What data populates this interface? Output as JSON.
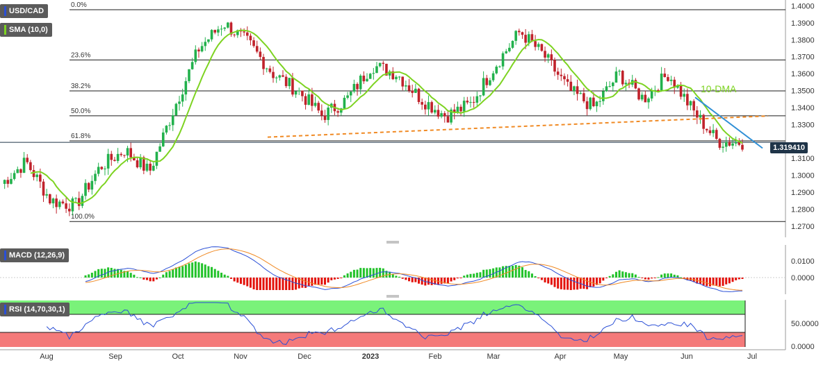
{
  "symbol_badge": "USD/CAD",
  "sma_badge": "SMA (10,0)",
  "macd_badge": "MACD (12,26,9)",
  "rsi_badge": "RSI (14,70,30,1)",
  "annotation_dma": "10-DMA",
  "last_price_label": "1.319410",
  "colors": {
    "up_candle": "#22b14c",
    "down_candle": "#c0222b",
    "sma_line": "#7dd321",
    "fib_line": "#1a1a1a",
    "support_dashed": "#f08a24",
    "down_trendline": "#2f8fd6",
    "macd_line": "#2a4fd6",
    "signal_line": "#f08a24",
    "hist_pos": "#22c22a",
    "hist_neg": "#e3120b",
    "rsi_line": "#2a4fd6",
    "rsi_overbought_zone": "#7af27a",
    "rsi_oversold_zone": "#f47a7a",
    "price_tag_bg": "#1f3448"
  },
  "chart_data": [
    {
      "type": "candlestick",
      "title": "USD/CAD",
      "x_ticks": [
        "Aug",
        "Sep",
        "Oct",
        "Nov",
        "Dec",
        "2023",
        "Feb",
        "Mar",
        "Apr",
        "May",
        "Jun",
        "Jul"
      ],
      "y_ticks": [
        "1.4000",
        "1.3900",
        "1.3800",
        "1.3700",
        "1.3600",
        "1.3500",
        "1.3400",
        "1.3300",
        "1.3194",
        "1.3100",
        "1.3000",
        "1.2900",
        "1.2800",
        "1.2700"
      ],
      "ylim": [
        1.265,
        1.401
      ],
      "fibonacci": [
        {
          "label": "0.0%",
          "value": 1.3977
        },
        {
          "label": "23.6%",
          "value": 1.3681
        },
        {
          "label": "38.2%",
          "value": 1.3498
        },
        {
          "label": "50.0%",
          "value": 1.3351
        },
        {
          "label": "61.8%",
          "value": 1.3203
        },
        {
          "label": "100.0%",
          "value": 1.2727
        }
      ],
      "support_line": {
        "start": [
          "Nov",
          1.3225
        ],
        "end": [
          "Jul",
          1.335
        ]
      },
      "down_trendline": {
        "start": [
          "Jun",
          1.346
        ],
        "end": [
          "Jul",
          1.316
        ]
      },
      "sma_period": 10,
      "last_price": 1.31941,
      "approx_path": [
        [
          "Aug",
          1.295
        ],
        [
          "Aug",
          1.308
        ],
        [
          "Aug",
          1.285
        ],
        [
          "Sep",
          1.282
        ],
        [
          "Sep",
          1.305
        ],
        [
          "Sep",
          1.315
        ],
        [
          "Sep",
          1.302
        ],
        [
          "Oct",
          1.34
        ],
        [
          "Oct",
          1.375
        ],
        [
          "Oct",
          1.39
        ],
        [
          "Oct",
          1.378
        ],
        [
          "Nov",
          1.36
        ],
        [
          "Nov",
          1.35
        ],
        [
          "Nov",
          1.335
        ],
        [
          "Dec",
          1.345
        ],
        [
          "Dec",
          1.365
        ],
        [
          "2023",
          1.36
        ],
        [
          "2023",
          1.345
        ],
        [
          "Feb",
          1.335
        ],
        [
          "Feb",
          1.342
        ],
        [
          "Mar",
          1.365
        ],
        [
          "Mar",
          1.385
        ],
        [
          "Mar",
          1.37
        ],
        [
          "Apr",
          1.35
        ],
        [
          "Apr",
          1.34
        ],
        [
          "May",
          1.36
        ],
        [
          "May",
          1.345
        ],
        [
          "Jun",
          1.36
        ],
        [
          "Jun",
          1.338
        ],
        [
          "Jun",
          1.32
        ],
        [
          "Jul",
          1.3194
        ]
      ]
    },
    {
      "type": "line",
      "title": "MACD (12,26,9)",
      "y_ticks": [
        "0.0100",
        "0.0000"
      ],
      "series": [
        {
          "name": "MACD"
        },
        {
          "name": "Signal"
        },
        {
          "name": "Histogram"
        }
      ]
    },
    {
      "type": "line",
      "title": "RSI (14,70,30,1)",
      "y_ticks": [
        "50.0000",
        "0.0000"
      ],
      "levels": [
        70,
        30
      ]
    }
  ]
}
